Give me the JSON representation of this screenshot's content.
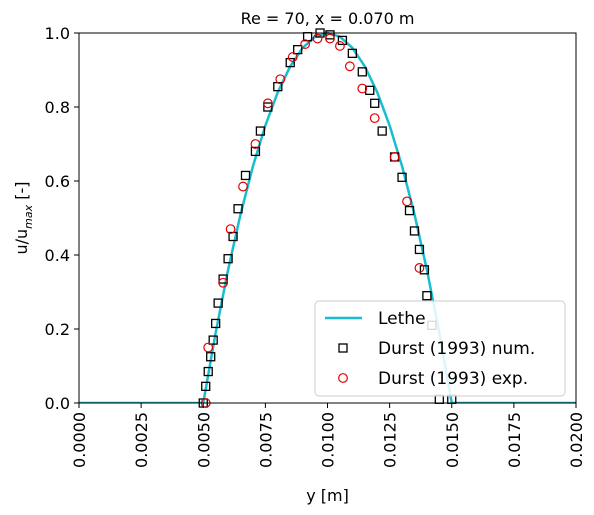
{
  "chart_data": {
    "type": "line",
    "title": "Re = 70, x = 0.070 m",
    "xlabel": "y [m]",
    "ylabel": "u/u_max [-]",
    "xlim": [
      0.0,
      0.02
    ],
    "ylim": [
      0.0,
      1.0
    ],
    "xticks": [
      "0.0000",
      "0.0025",
      "0.0050",
      "0.0075",
      "0.0100",
      "0.0125",
      "0.0150",
      "0.0175",
      "0.0200"
    ],
    "yticks": [
      "0.0",
      "0.2",
      "0.4",
      "0.6",
      "0.8",
      "1.0"
    ],
    "grid": false,
    "legend": {
      "placement": "bottom-right"
    },
    "series": [
      {
        "name": "Lethe",
        "type": "line",
        "color": "#17becf",
        "x": [
          0.0,
          0.0049,
          0.005,
          0.0055,
          0.006,
          0.0065,
          0.007,
          0.0075,
          0.008,
          0.0085,
          0.009,
          0.0095,
          0.01,
          0.0105,
          0.011,
          0.0115,
          0.012,
          0.0125,
          0.013,
          0.0135,
          0.014,
          0.0145,
          0.015,
          0.0151,
          0.02
        ],
        "y": [
          0.0,
          0.0,
          0.0,
          0.19,
          0.36,
          0.51,
          0.64,
          0.75,
          0.84,
          0.91,
          0.96,
          0.99,
          1.0,
          0.99,
          0.96,
          0.91,
          0.84,
          0.75,
          0.64,
          0.51,
          0.36,
          0.19,
          0.0,
          0.0,
          0.0
        ]
      },
      {
        "name": "Durst (1993) num.",
        "type": "scatter",
        "marker": "square",
        "color": "#000000",
        "x": [
          0.005,
          0.0051,
          0.0052,
          0.0053,
          0.0054,
          0.0055,
          0.0056,
          0.0058,
          0.006,
          0.0062,
          0.0064,
          0.0067,
          0.0071,
          0.0073,
          0.0076,
          0.008,
          0.0085,
          0.0088,
          0.0092,
          0.0097,
          0.0101,
          0.0106,
          0.011,
          0.0114,
          0.0117,
          0.0119,
          0.0122,
          0.0127,
          0.013,
          0.0133,
          0.0135,
          0.0137,
          0.0139,
          0.014,
          0.0142,
          0.0145,
          0.015
        ],
        "y": [
          0.0,
          0.045,
          0.085,
          0.125,
          0.17,
          0.215,
          0.27,
          0.335,
          0.39,
          0.45,
          0.525,
          0.615,
          0.68,
          0.735,
          0.8,
          0.855,
          0.92,
          0.955,
          0.99,
          1.0,
          0.995,
          0.98,
          0.945,
          0.895,
          0.845,
          0.81,
          0.735,
          0.665,
          0.61,
          0.52,
          0.465,
          0.415,
          0.36,
          0.29,
          0.21,
          0.01,
          0.01
        ]
      },
      {
        "name": "Durst (1993) exp.",
        "type": "scatter",
        "marker": "circle",
        "color": "#e00000",
        "x": [
          0.0051,
          0.0052,
          0.0058,
          0.0061,
          0.0066,
          0.0071,
          0.0076,
          0.0081,
          0.0086,
          0.0091,
          0.0096,
          0.0101,
          0.0105,
          0.0109,
          0.0114,
          0.0119,
          0.0127,
          0.0132,
          0.0137
        ],
        "y": [
          0.0,
          0.15,
          0.325,
          0.47,
          0.585,
          0.7,
          0.81,
          0.875,
          0.935,
          0.97,
          0.985,
          0.985,
          0.965,
          0.91,
          0.85,
          0.77,
          0.665,
          0.545,
          0.365
        ]
      }
    ]
  }
}
